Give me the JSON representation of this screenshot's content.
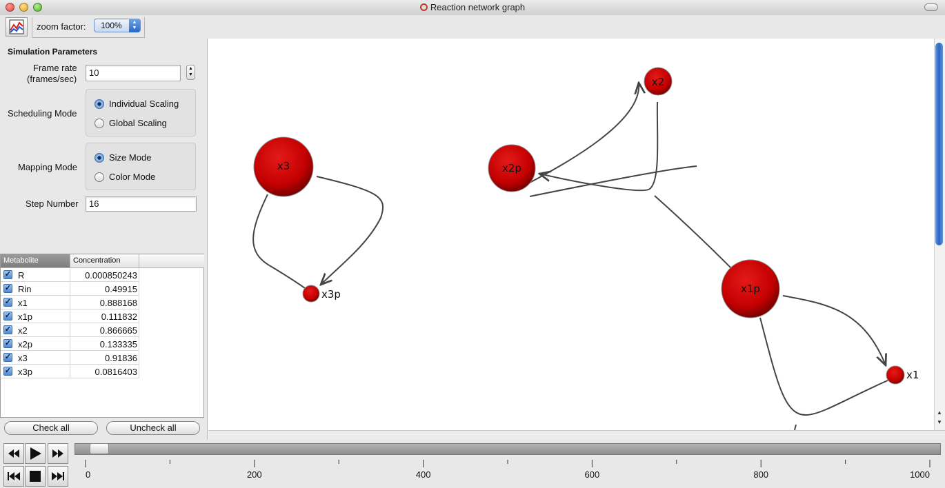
{
  "window": {
    "title": "Reaction network graph"
  },
  "toolbar": {
    "zoom_label": "zoom factor:",
    "zoom_value": "100%"
  },
  "sim": {
    "heading": "Simulation Parameters",
    "frame_rate_label_1": "Frame rate",
    "frame_rate_label_2": "(frames/sec)",
    "frame_rate_value": "10",
    "scheduling_label": "Scheduling Mode",
    "scheduling_options": [
      "Individual Scaling",
      "Global Scaling"
    ],
    "scheduling_selected": "Individual Scaling",
    "mapping_label": "Mapping Mode",
    "mapping_options": [
      "Size Mode",
      "Color Mode"
    ],
    "mapping_selected": "Size Mode",
    "step_label": "Step Number",
    "step_value": "16"
  },
  "table": {
    "headers": [
      "Metabolite",
      "Concentration"
    ],
    "rows": [
      {
        "name": "R",
        "value": "0.000850243",
        "checked": true
      },
      {
        "name": "Rin",
        "value": "0.49915",
        "checked": true
      },
      {
        "name": "x1",
        "value": "0.888168",
        "checked": true
      },
      {
        "name": "x1p",
        "value": "0.111832",
        "checked": true
      },
      {
        "name": "x2",
        "value": "0.866665",
        "checked": true
      },
      {
        "name": "x2p",
        "value": "0.133335",
        "checked": true
      },
      {
        "name": "x3",
        "value": "0.91836",
        "checked": true
      },
      {
        "name": "x3p",
        "value": "0.0816403",
        "checked": true
      }
    ]
  },
  "buttons": {
    "check_all": "Check all",
    "uncheck_all": "Uncheck all"
  },
  "graph": {
    "nodes": [
      "x2",
      "x2p",
      "x3",
      "x3p",
      "x1p",
      "x1"
    ]
  },
  "timeline": {
    "ticks": [
      "0",
      "200",
      "400",
      "600",
      "800",
      "1000"
    ],
    "position": 16
  },
  "colors": {
    "node": "#cc0000",
    "selection": "#3875d7"
  }
}
